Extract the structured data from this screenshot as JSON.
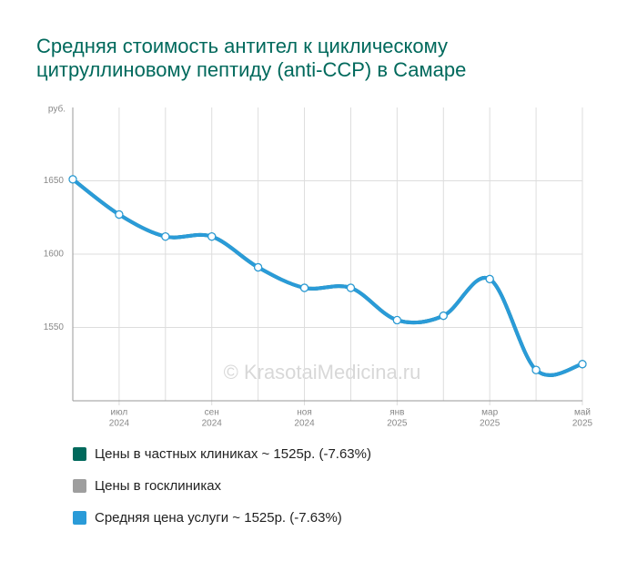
{
  "chart_data": {
    "type": "line",
    "title": [
      "Средняя стоимость антител к циклическому",
      "цитруллиновому пептиду (anti-CCP) в Самаре"
    ],
    "y_unit": "руб.",
    "watermark": "© KrasotaiMedicina.ru",
    "categories": [
      null,
      [
        "июл",
        "2024"
      ],
      null,
      [
        "сен",
        "2024"
      ],
      null,
      [
        "ноя",
        "2024"
      ],
      null,
      [
        "янв",
        "2025"
      ],
      null,
      [
        "мар",
        "2025"
      ],
      null,
      [
        "май",
        "2025"
      ]
    ],
    "series": [
      {
        "name": "Цены в частных клиниках ~ 1525р. (-7.63%)",
        "color": "#00695c",
        "values": [
          1651,
          1627,
          1612,
          1612,
          1591,
          1577,
          1577,
          1555,
          1558,
          1583,
          1521,
          1525
        ]
      },
      {
        "name": "Цены в госклиниках",
        "color": "#9e9e9e"
      },
      {
        "name": "Средняя цена услуги ~ 1525р. (-7.63%)",
        "color": "#2a9bd8",
        "values": [
          1651,
          1627,
          1612,
          1612,
          1591,
          1577,
          1577,
          1555,
          1558,
          1583,
          1521,
          1525
        ]
      }
    ],
    "ylim": [
      1500,
      1700
    ],
    "yticks": [
      1550,
      1600,
      1650
    ],
    "grid": true
  }
}
